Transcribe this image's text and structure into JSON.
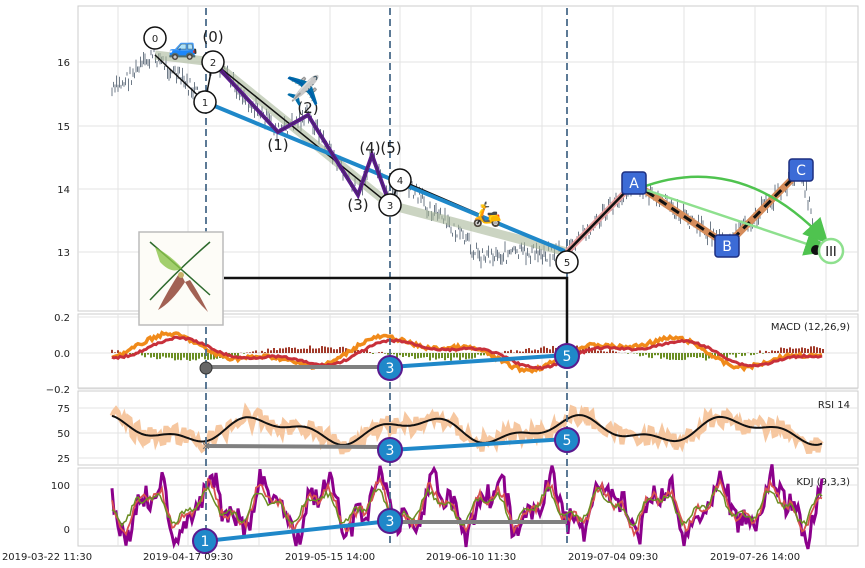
{
  "chart_data": [
    {
      "type": "line",
      "panel": "price",
      "ylim": [
        12.1,
        16.9
      ],
      "yticks": [
        "16",
        "15",
        "14",
        "13"
      ],
      "grid": true,
      "vlines_x": [
        17.5,
        35.5,
        66.5
      ],
      "wave_numbers": [
        "0",
        "1",
        "2",
        "3",
        "4",
        "5"
      ],
      "wave_labels": [
        "(0)",
        "(1)",
        "(2)",
        "(3)",
        "(4)",
        "(5)"
      ],
      "abc_labels": [
        "A",
        "B",
        "C"
      ],
      "end_label": "III",
      "emoji_car": "🚙",
      "emoji_plane": "✈️",
      "emoji_scooter": "🛵",
      "colors": {
        "purple": "#5b1a8f",
        "blue": "#1f88c9",
        "gray": "#808080",
        "orange_red": "#d9601a",
        "green": "#4fc34f",
        "box": "#3c6bd6"
      }
    },
    {
      "type": "line",
      "panel": "macd",
      "label": "MACD (12,26,9)",
      "ylim": [
        -0.2,
        0.2
      ],
      "yticks": [
        "0.2",
        "0.0",
        "−0.2"
      ],
      "markers": [
        "3",
        "5"
      ]
    },
    {
      "type": "line",
      "panel": "rsi",
      "label": "RSI 14",
      "ylim": [
        15,
        95
      ],
      "yticks": [
        "75",
        "50",
        "25"
      ],
      "markers": [
        "3",
        "5"
      ]
    },
    {
      "type": "line",
      "panel": "kdj",
      "label": "KDJ (9,3,3)",
      "ylim": [
        -25,
        135
      ],
      "yticks": [
        "100",
        "0"
      ],
      "markers": [
        "1",
        "3"
      ]
    }
  ],
  "xaxis": {
    "tick_labels": [
      "2019-03-22 11:30",
      "2019-04-17 09:30",
      "2019-05-15 14:00",
      "2019-06-10 11:30",
      "2019-07-04 09:30",
      "2019-07-26 14:00"
    ]
  }
}
